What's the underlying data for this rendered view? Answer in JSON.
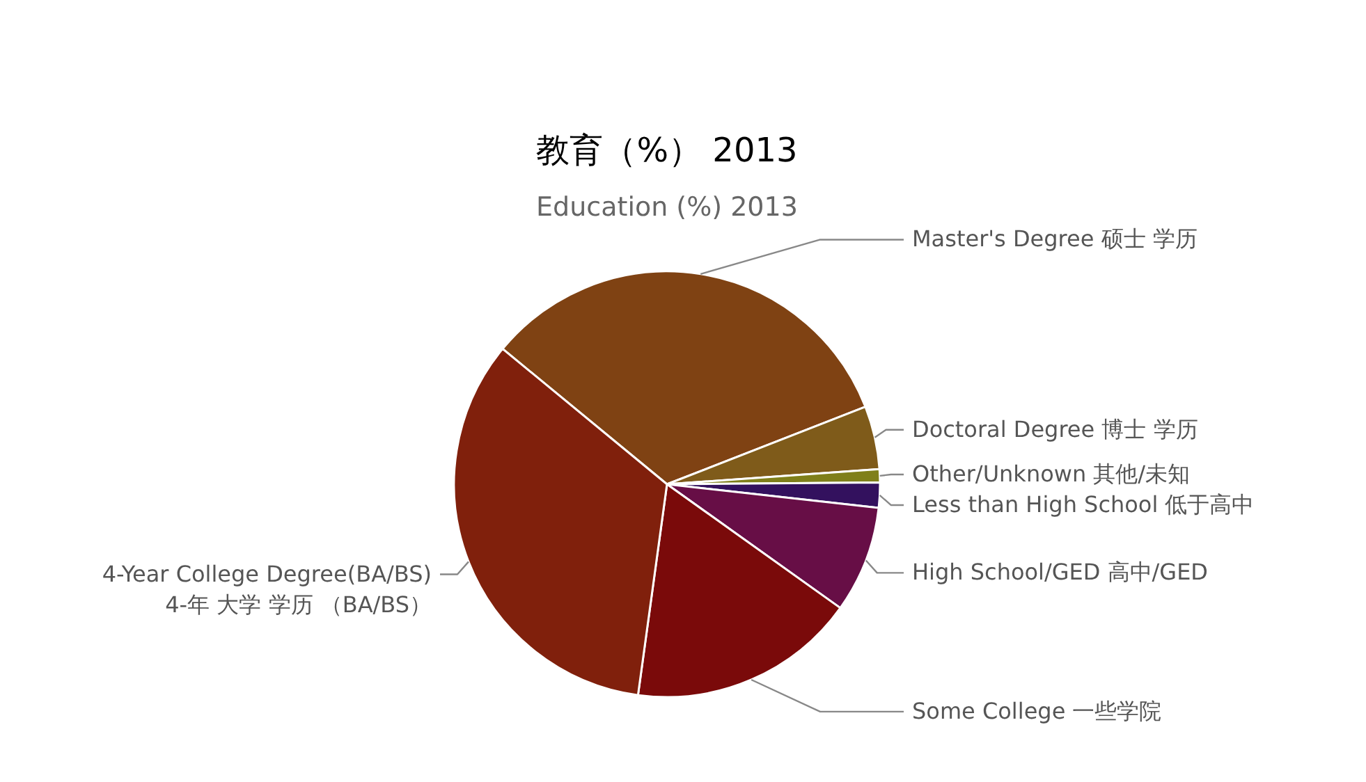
{
  "chart_data": {
    "type": "pie",
    "title": "教育（%） 2013",
    "subtitle": "Education (%) 2013",
    "categories": [
      "Master's Degree 硕士 学历",
      "Doctoral Degree 博士 学历",
      "Other/Unknown 其他/未知",
      "Less than High School 低于高中",
      "High School/GED 高中/GED",
      "Some College 一些学院",
      "4-Year College Degree(BA/BS) 4-年 大学 学历 （BA/BS）"
    ],
    "values": [
      33.1,
      4.8,
      1.0,
      1.9,
      8.1,
      17.3,
      33.8
    ],
    "colors": [
      "#7f4213",
      "#7f5b1a",
      "#7f7f1a",
      "#33115e",
      "#670e46",
      "#7a0a0a",
      "#80200c"
    ]
  }
}
